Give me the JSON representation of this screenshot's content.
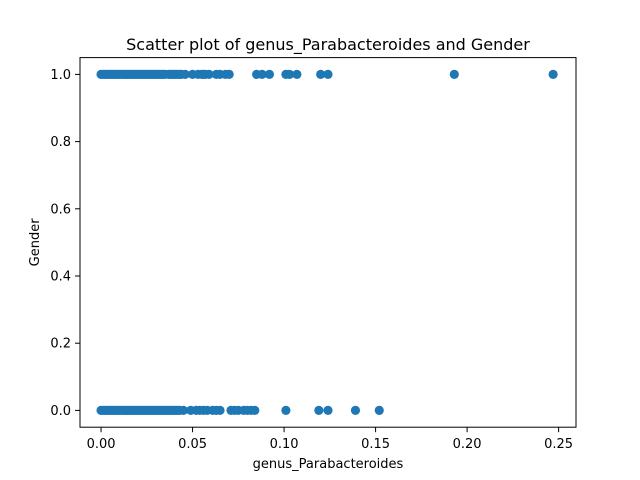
{
  "chart_data": {
    "type": "scatter",
    "title": "Scatter plot of genus_Parabacteroides and Gender",
    "xlabel": "genus_Parabacteroides",
    "ylabel": "Gender",
    "xlim": [
      -0.0115,
      0.2595
    ],
    "ylim": [
      -0.05,
      1.05
    ],
    "xticks": [
      0.0,
      0.05,
      0.1,
      0.15,
      0.2,
      0.25
    ],
    "xtick_labels": [
      "0.00",
      "0.05",
      "0.10",
      "0.15",
      "0.20",
      "0.25"
    ],
    "yticks": [
      0.0,
      0.2,
      0.4,
      0.6,
      0.8,
      1.0
    ],
    "ytick_labels": [
      "0.0",
      "0.2",
      "0.4",
      "0.6",
      "0.8",
      "1.0"
    ],
    "grid": false,
    "legend": "none",
    "marker_color": "#1f77b4",
    "series": [
      {
        "x": [
          0.0,
          0.001,
          0.002,
          0.003,
          0.004,
          0.005,
          0.006,
          0.007,
          0.008,
          0.009,
          0.01,
          0.011,
          0.012,
          0.013,
          0.014,
          0.015,
          0.016,
          0.017,
          0.018,
          0.019,
          0.02,
          0.021,
          0.022,
          0.023,
          0.024,
          0.025,
          0.026,
          0.027,
          0.028,
          0.029,
          0.03,
          0.031,
          0.032,
          0.033,
          0.034,
          0.035,
          0.037,
          0.038,
          0.039,
          0.04,
          0.041,
          0.042,
          0.043,
          0.044,
          0.046,
          0.05,
          0.053,
          0.055,
          0.056,
          0.057,
          0.059,
          0.063,
          0.065,
          0.068,
          0.07,
          0.085,
          0.088,
          0.092,
          0.101,
          0.103,
          0.107,
          0.12,
          0.124,
          0.193,
          0.247,
          0.0,
          0.001,
          0.002,
          0.003,
          0.004,
          0.005,
          0.006,
          0.007,
          0.008,
          0.009,
          0.01,
          0.011,
          0.012,
          0.013,
          0.014,
          0.015,
          0.016,
          0.017,
          0.018,
          0.019,
          0.02,
          0.021,
          0.022,
          0.023,
          0.024,
          0.025,
          0.026,
          0.027,
          0.028,
          0.029,
          0.03,
          0.031,
          0.032,
          0.033,
          0.034,
          0.035,
          0.036,
          0.037,
          0.038,
          0.039,
          0.04,
          0.041,
          0.042,
          0.043,
          0.045,
          0.049,
          0.052,
          0.054,
          0.056,
          0.058,
          0.061,
          0.063,
          0.065,
          0.071,
          0.073,
          0.075,
          0.078,
          0.08,
          0.082,
          0.084,
          0.101,
          0.119,
          0.124,
          0.139,
          0.152
        ],
        "y": [
          1,
          1,
          1,
          1,
          1,
          1,
          1,
          1,
          1,
          1,
          1,
          1,
          1,
          1,
          1,
          1,
          1,
          1,
          1,
          1,
          1,
          1,
          1,
          1,
          1,
          1,
          1,
          1,
          1,
          1,
          1,
          1,
          1,
          1,
          1,
          1,
          1,
          1,
          1,
          1,
          1,
          1,
          1,
          1,
          1,
          1,
          1,
          1,
          1,
          1,
          1,
          1,
          1,
          1,
          1,
          1,
          1,
          1,
          1,
          1,
          1,
          1,
          1,
          1,
          1,
          0,
          0,
          0,
          0,
          0,
          0,
          0,
          0,
          0,
          0,
          0,
          0,
          0,
          0,
          0,
          0,
          0,
          0,
          0,
          0,
          0,
          0,
          0,
          0,
          0,
          0,
          0,
          0,
          0,
          0,
          0,
          0,
          0,
          0,
          0,
          0,
          0,
          0,
          0,
          0,
          0,
          0,
          0,
          0,
          0,
          0,
          0,
          0,
          0,
          0,
          0,
          0,
          0,
          0,
          0,
          0,
          0,
          0,
          0,
          0,
          0,
          0,
          0,
          0,
          0
        ]
      }
    ]
  }
}
